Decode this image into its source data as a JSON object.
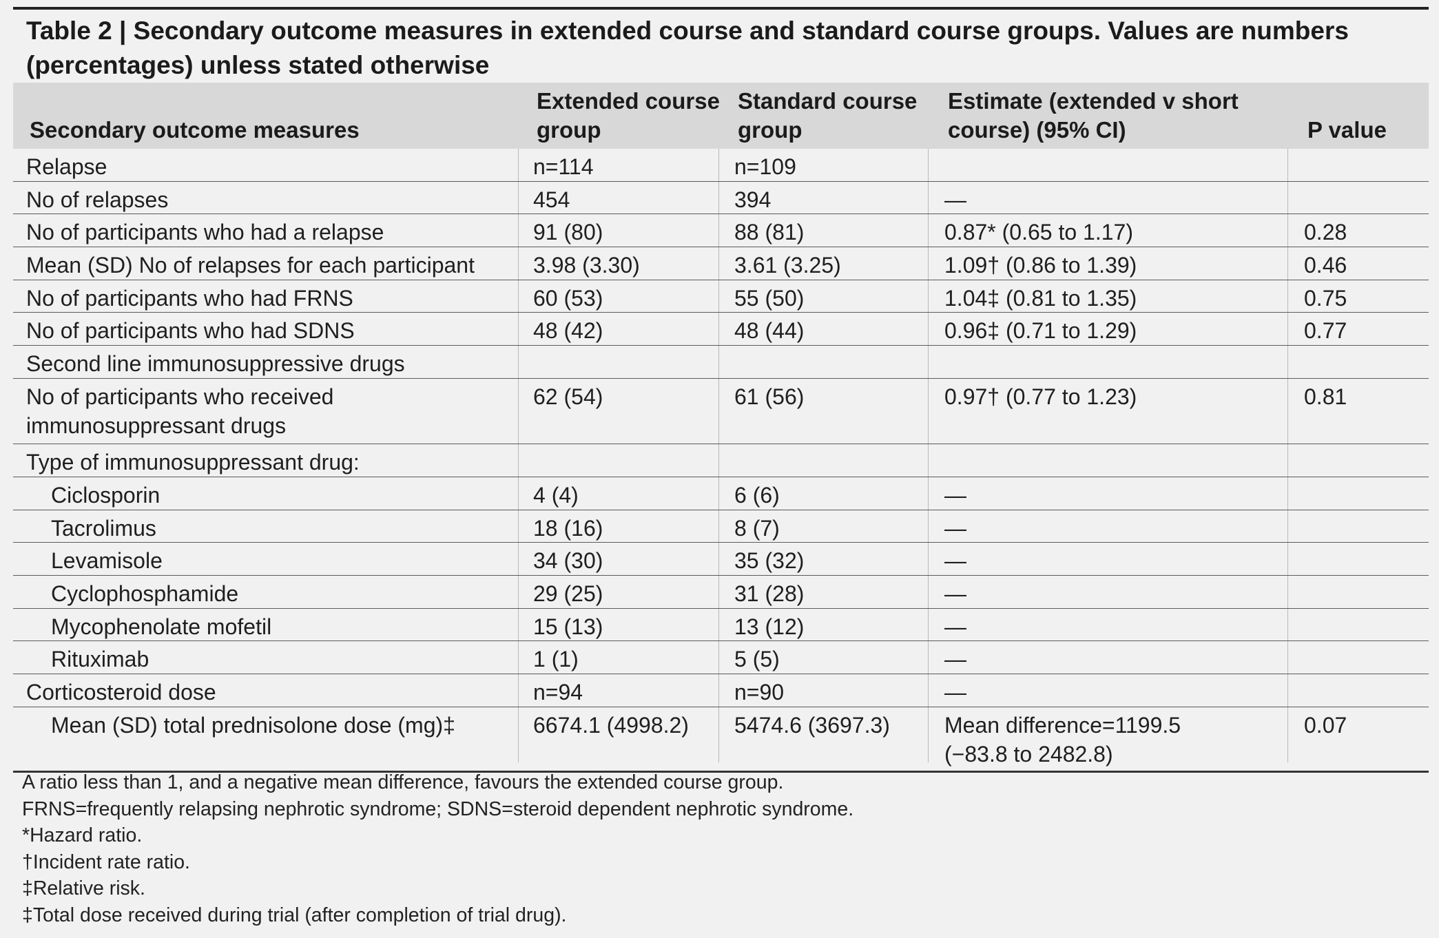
{
  "caption": "Table 2 | Secondary outcome measures in extended course and standard course groups. Values are numbers (percentages) unless stated otherwise",
  "header": {
    "col0": "Secondary outcome measures",
    "col1_line1": "Extended course",
    "col1_line2": "group",
    "col2_line1": "Standard course",
    "col2_line2": "group",
    "col3_line1": "Estimate (extended v short",
    "col3_line2": "course) (95% CI)",
    "col4": "P value"
  },
  "rows": [
    {
      "label": "Relapse",
      "ext": "n=114",
      "std": "n=109",
      "est": "",
      "p": ""
    },
    {
      "label": "No of relapses",
      "ext": "454",
      "std": "394",
      "est": "—",
      "p": ""
    },
    {
      "label": "No of participants who had a relapse",
      "ext": "91 (80)",
      "std": "88 (81)",
      "est": "0.87* (0.65 to 1.17)",
      "p": "0.28"
    },
    {
      "label": "Mean (SD) No of relapses for each participant",
      "ext": "3.98 (3.30)",
      "std": "3.61 (3.25)",
      "est": "1.09† (0.86 to 1.39)",
      "p": "0.46"
    },
    {
      "label": "No of participants who had FRNS",
      "ext": "60 (53)",
      "std": "55 (50)",
      "est": "1.04‡ (0.81 to 1.35)",
      "p": "0.75"
    },
    {
      "label": "No of participants who had SDNS",
      "ext": "48 (42)",
      "std": "48 (44)",
      "est": "0.96‡ (0.71 to 1.29)",
      "p": "0.77"
    },
    {
      "label": "Second line immunosuppressive drugs",
      "ext": "",
      "std": "",
      "est": "",
      "p": ""
    },
    {
      "label_line1": "No of participants who received",
      "label_line2": "immunosuppressant drugs",
      "ext": "62 (54)",
      "std": "61 (56)",
      "est": "0.97† (0.77 to 1.23)",
      "p": "0.81"
    },
    {
      "label": "Type of immunosuppressant drug:",
      "ext": "",
      "std": "",
      "est": "",
      "p": ""
    },
    {
      "label": "Ciclosporin",
      "ext": "4 (4)",
      "std": "6 (6)",
      "est": "—",
      "p": ""
    },
    {
      "label": "Tacrolimus",
      "ext": "18 (16)",
      "std": "8 (7)",
      "est": "—",
      "p": ""
    },
    {
      "label": "Levamisole",
      "ext": "34 (30)",
      "std": "35 (32)",
      "est": "—",
      "p": ""
    },
    {
      "label": "Cyclophosphamide",
      "ext": "29 (25)",
      "std": "31 (28)",
      "est": "—",
      "p": ""
    },
    {
      "label": "Mycophenolate mofetil",
      "ext": "15 (13)",
      "std": "13 (12)",
      "est": "—",
      "p": ""
    },
    {
      "label": "Rituximab",
      "ext": "1 (1)",
      "std": "5 (5)",
      "est": "—",
      "p": ""
    },
    {
      "label": "Corticosteroid dose",
      "ext": "n=94",
      "std": "n=90",
      "est": "—",
      "p": ""
    },
    {
      "label": "Mean (SD) total prednisolone dose (mg)‡",
      "ext": "6674.1 (4998.2)",
      "std": "5474.6 (3697.3)",
      "est_line1": "Mean difference=1199.5",
      "est_line2": "(−83.8 to 2482.8)",
      "p": "0.07"
    }
  ],
  "footnotes": [
    "A ratio less than 1, and a negative mean difference, favours the extended course group.",
    "FRNS=frequently relapsing nephrotic syndrome; SDNS=steroid dependent nephrotic syndrome.",
    "*Hazard ratio.",
    "†Incident rate ratio.",
    "‡Relative risk.",
    "‡Total dose received during trial (after completion of trial drug)."
  ]
}
